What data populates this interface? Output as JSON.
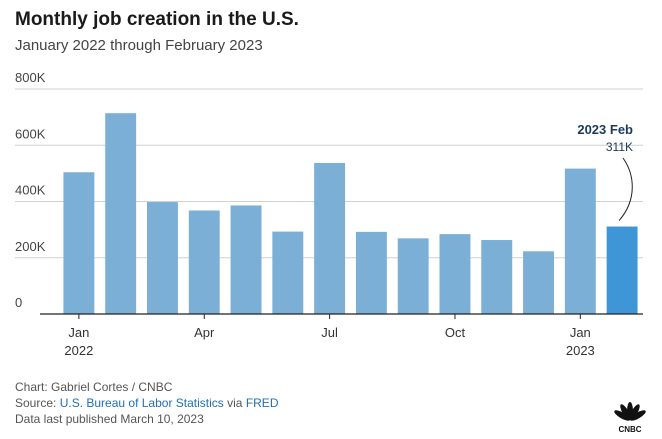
{
  "header": {
    "title": "Monthly job creation in the U.S.",
    "subtitle": "January 2022 through February 2023"
  },
  "chart_data": {
    "type": "bar",
    "title": "Monthly job creation in the U.S.",
    "subtitle": "January 2022 through February 2023",
    "xlabel": "",
    "ylabel": "",
    "ylim": [
      0,
      800000
    ],
    "yticks": [
      0,
      200000,
      400000,
      600000,
      800000
    ],
    "ytick_labels": [
      "0",
      "200K",
      "400K",
      "600K",
      "800K"
    ],
    "grid": true,
    "categories": [
      "2022-01",
      "2022-02",
      "2022-03",
      "2022-04",
      "2022-05",
      "2022-06",
      "2022-07",
      "2022-08",
      "2022-09",
      "2022-10",
      "2022-11",
      "2022-12",
      "2023-01",
      "2023-02"
    ],
    "values": [
      504000,
      714000,
      398000,
      368000,
      386000,
      293000,
      537000,
      292000,
      269000,
      284000,
      263000,
      223000,
      517000,
      311000
    ],
    "xtick_labels": [
      {
        "category": "2022-01",
        "line1": "Jan",
        "line2": "2022"
      },
      {
        "category": "2022-04",
        "line1": "Apr",
        "line2": ""
      },
      {
        "category": "2022-07",
        "line1": "Jul",
        "line2": ""
      },
      {
        "category": "2022-10",
        "line1": "Oct",
        "line2": ""
      },
      {
        "category": "2023-01",
        "line1": "Jan",
        "line2": "2023"
      }
    ],
    "colors": {
      "bar": "#7bafd6",
      "highlight": "#3f96d6",
      "annotation": "#1d3a5c",
      "grid": "#d0d0d0",
      "axis": "#222222"
    },
    "highlight": {
      "category": "2023-02",
      "label": "2023 Feb",
      "value_label": "311K"
    }
  },
  "footer": {
    "credit": "Chart: Gabriel Cortes / CNBC",
    "source_prefix": "Source: ",
    "source_link": "U.S. Bureau of Labor Statistics",
    "source_via": " via ",
    "source_link2": "FRED",
    "published": "Data last published March 10, 2023"
  },
  "logo": {
    "icon": "cnbc-peacock-icon",
    "text": "CNBC"
  }
}
